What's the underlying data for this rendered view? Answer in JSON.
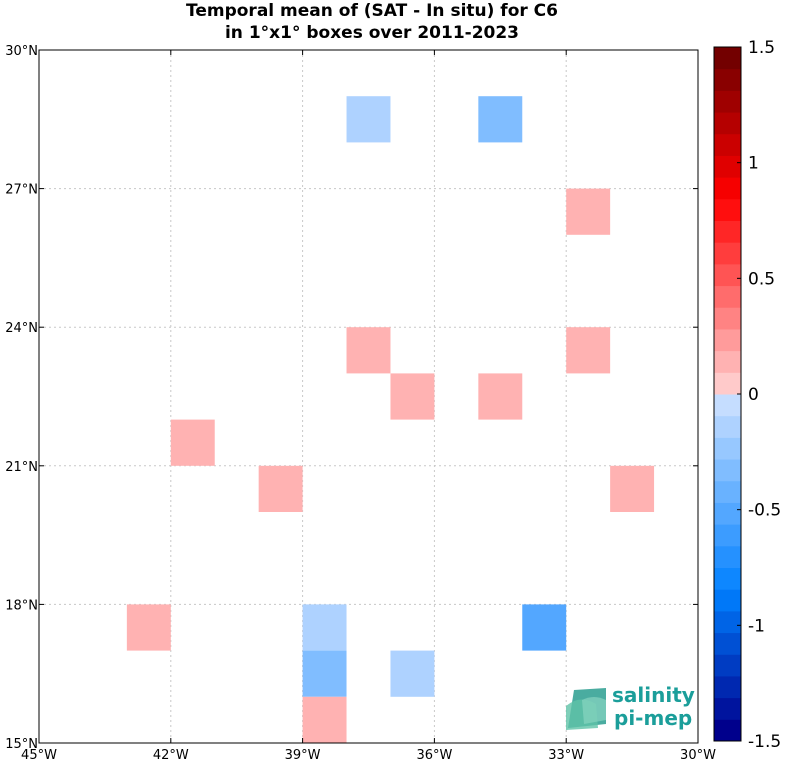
{
  "chart_data": {
    "type": "heatmap",
    "title_lines": [
      "Temporal mean of (SAT - In situ) for C6",
      "in 1°x1° boxes over 2011-2023"
    ],
    "x_ticks": [
      {
        "value": -45,
        "label": "45°W"
      },
      {
        "value": -42,
        "label": "42°W"
      },
      {
        "value": -39,
        "label": "39°W"
      },
      {
        "value": -36,
        "label": "36°W"
      },
      {
        "value": -33,
        "label": "33°W"
      },
      {
        "value": -30,
        "label": "30°W"
      }
    ],
    "y_ticks": [
      {
        "value": 15,
        "label": "15°N"
      },
      {
        "value": 18,
        "label": "18°N"
      },
      {
        "value": 21,
        "label": "21°N"
      },
      {
        "value": 24,
        "label": "24°N"
      },
      {
        "value": 27,
        "label": "27°N"
      },
      {
        "value": 30,
        "label": "30°N"
      }
    ],
    "xlim": [
      -45,
      -30
    ],
    "ylim": [
      15,
      30
    ],
    "grid": true,
    "colorbar": {
      "range": [
        -1.5,
        1.5
      ],
      "levels": 32,
      "ticks": [
        {
          "value": 1.5,
          "label": "1.5"
        },
        {
          "value": 1,
          "label": "1"
        },
        {
          "value": 0.5,
          "label": "0.5"
        },
        {
          "value": 0,
          "label": "0"
        },
        {
          "value": -0.5,
          "label": "-0.5"
        },
        {
          "value": -1,
          "label": "-1"
        },
        {
          "value": -1.5,
          "label": "-1.5"
        }
      ]
    },
    "cells": [
      {
        "lon": -38,
        "lat": 28,
        "value": -0.15
      },
      {
        "lon": -35,
        "lat": 28,
        "value": -0.3
      },
      {
        "lon": -33,
        "lat": 26,
        "value": 0.15
      },
      {
        "lon": -38,
        "lat": 23,
        "value": 0.15
      },
      {
        "lon": -33,
        "lat": 23,
        "value": 0.15
      },
      {
        "lon": -37,
        "lat": 22,
        "value": 0.15
      },
      {
        "lon": -35,
        "lat": 22,
        "value": 0.15
      },
      {
        "lon": -42,
        "lat": 21,
        "value": 0.15
      },
      {
        "lon": -40,
        "lat": 20,
        "value": 0.15
      },
      {
        "lon": -32,
        "lat": 20,
        "value": 0.15
      },
      {
        "lon": -43,
        "lat": 17,
        "value": 0.15
      },
      {
        "lon": -39,
        "lat": 17,
        "value": -0.15
      },
      {
        "lon": -34,
        "lat": 17,
        "value": -0.55
      },
      {
        "lon": -39,
        "lat": 16,
        "value": -0.3
      },
      {
        "lon": -37,
        "lat": 16,
        "value": -0.15
      },
      {
        "lon": -39,
        "lat": 15,
        "value": 0.15
      }
    ]
  },
  "logo": {
    "line1": "salinity",
    "line2": "pi-mep",
    "color": "#1b9e9a"
  }
}
